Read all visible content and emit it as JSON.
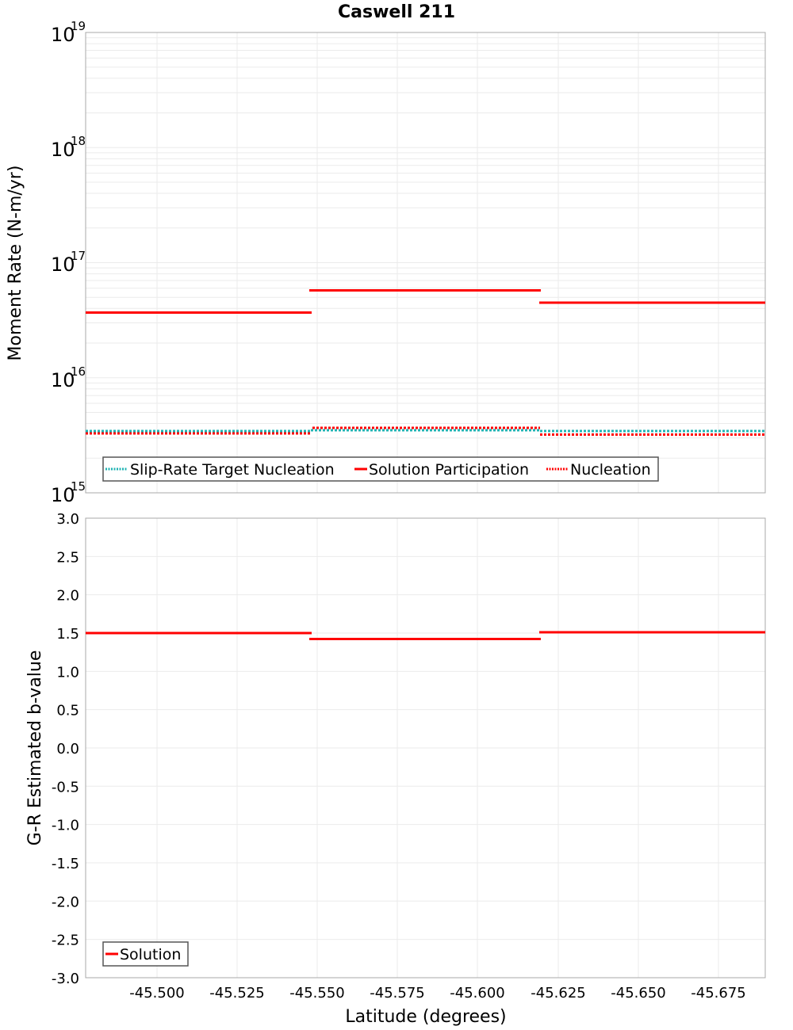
{
  "title": "Caswell 211",
  "chart_data": [
    {
      "type": "line",
      "subtype": "step",
      "title": "Caswell 211",
      "xlabel": "Latitude (degrees)",
      "ylabel": "Moment Rate (N-m/yr)",
      "yscale": "log",
      "ylim": [
        1000000000000000.0,
        1e+19
      ],
      "xlim": [
        -45.478,
        -45.69
      ],
      "x_inverted": true,
      "ytick_labels": [
        "10^19",
        "10^18",
        "10^17",
        "10^16",
        "10^15"
      ],
      "grid": true,
      "legend_position": "lower-left",
      "segments_x": [
        [
          -45.478,
          -45.548
        ],
        [
          -45.548,
          -45.619
        ],
        [
          -45.619,
          -45.69
        ]
      ],
      "series": [
        {
          "name": "Slip-Rate Target Nucleation",
          "style": "dotted",
          "color": "#1fb3b3",
          "values": [
            3300000000000000.0,
            3350000000000000.0,
            3300000000000000.0
          ]
        },
        {
          "name": "Solution Participation",
          "style": "solid",
          "color": "#ff0000",
          "values": [
            3.7e+16,
            5.7e+16,
            4.5e+16
          ]
        },
        {
          "name": "Nucleation",
          "style": "dotted",
          "color": "#ff0000",
          "values": [
            3150000000000000.0,
            3500000000000000.0,
            3050000000000000.0
          ]
        }
      ]
    },
    {
      "type": "line",
      "subtype": "step",
      "xlabel": "Latitude (degrees)",
      "ylabel": "G-R Estimated b-value",
      "ylim": [
        -3.0,
        3.0
      ],
      "xlim": [
        -45.478,
        -45.69
      ],
      "x_inverted": true,
      "xtick_labels": [
        "-45.500",
        "-45.525",
        "-45.550",
        "-45.575",
        "-45.600",
        "-45.625",
        "-45.650",
        "-45.675"
      ],
      "ytick_labels": [
        "3.0",
        "2.5",
        "2.0",
        "1.5",
        "1.0",
        "0.5",
        "0.0",
        "-0.5",
        "-1.0",
        "-1.5",
        "-2.0",
        "-2.5",
        "-3.0"
      ],
      "grid": true,
      "legend_position": "lower-left",
      "segments_x": [
        [
          -45.478,
          -45.548
        ],
        [
          -45.548,
          -45.619
        ],
        [
          -45.619,
          -45.69
        ]
      ],
      "series": [
        {
          "name": "Solution",
          "style": "solid",
          "color": "#ff0000",
          "values": [
            1.5,
            1.42,
            1.51
          ]
        }
      ]
    }
  ],
  "top": {
    "ylabel": "Moment Rate (N-m/yr)",
    "yticks": [
      {
        "base": "10",
        "exp": "19"
      },
      {
        "base": "10",
        "exp": "18"
      },
      {
        "base": "10",
        "exp": "17"
      },
      {
        "base": "10",
        "exp": "16"
      },
      {
        "base": "10",
        "exp": "15"
      }
    ],
    "legend": [
      "Slip-Rate Target Nucleation",
      "Solution Participation",
      "Nucleation"
    ]
  },
  "bottom": {
    "ylabel": "G-R Estimated b-value",
    "yticks": [
      "3.0",
      "2.5",
      "2.0",
      "1.5",
      "1.0",
      "0.5",
      "0.0",
      "-0.5",
      "-1.0",
      "-1.5",
      "-2.0",
      "-2.5",
      "-3.0"
    ],
    "xticks": [
      "-45.500",
      "-45.525",
      "-45.550",
      "-45.575",
      "-45.600",
      "-45.625",
      "-45.650",
      "-45.675"
    ],
    "xlabel": "Latitude (degrees)",
    "legend": [
      "Solution"
    ]
  },
  "colors": {
    "red": "#ff0000",
    "cyan": "#1fb3b3",
    "grid": "#ebebeb",
    "frame": "#a8a8a8"
  }
}
